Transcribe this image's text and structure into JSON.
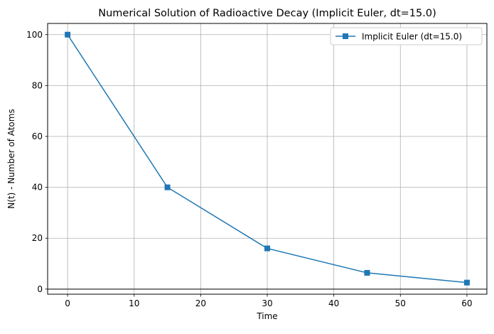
{
  "chart_data": {
    "type": "line",
    "title": "Numerical Solution of Radioactive Decay (Implicit Euler, dt=15.0)",
    "xlabel": "Time",
    "ylabel": "N(t) - Number of Atoms",
    "xlim": [
      -3,
      63
    ],
    "ylim": [
      -2,
      104.4
    ],
    "xticks": [
      0,
      10,
      20,
      30,
      40,
      50,
      60
    ],
    "yticks": [
      0,
      20,
      40,
      60,
      80,
      100
    ],
    "grid": true,
    "legend_position": "top-right",
    "hline_y": 0,
    "series": [
      {
        "name": "Implicit Euler (dt=15.0)",
        "color": "#1f77b4",
        "marker": "square",
        "x": [
          0,
          15,
          30,
          45,
          60
        ],
        "y": [
          100,
          40,
          16,
          6.4,
          2.56
        ]
      }
    ]
  }
}
